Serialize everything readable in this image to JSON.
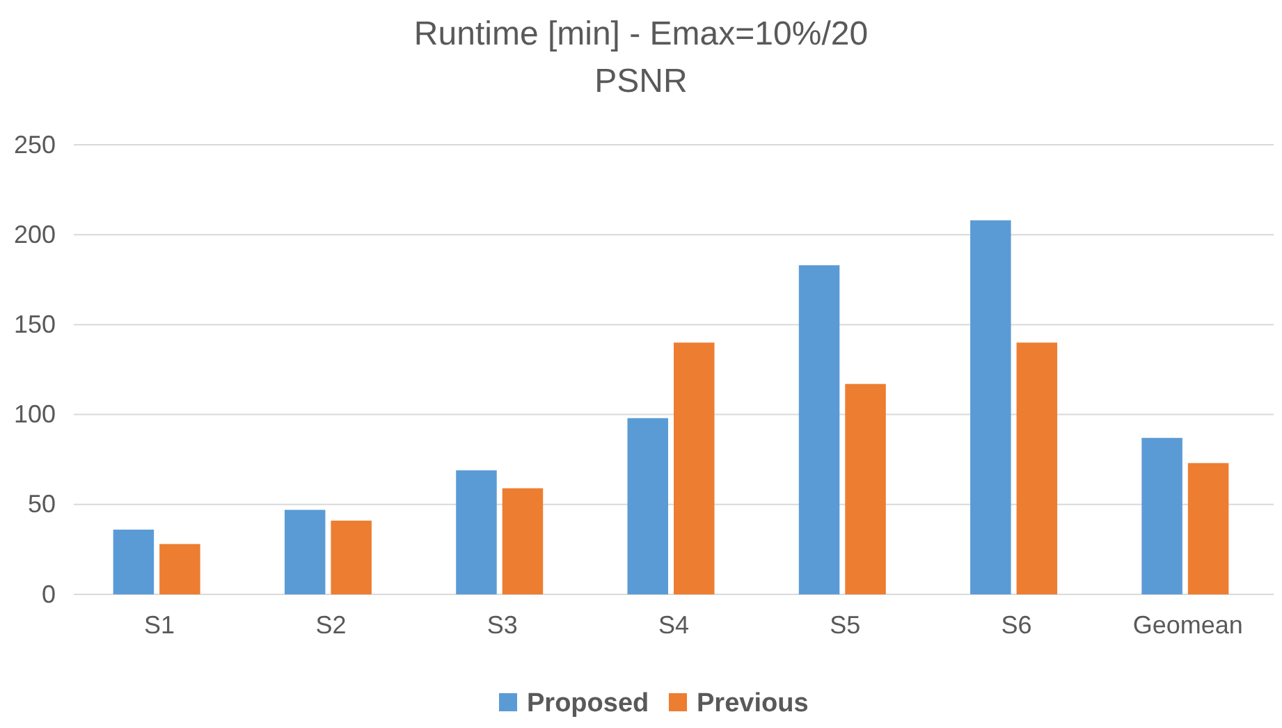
{
  "chart_data": {
    "type": "bar",
    "title": "Runtime [min] - Emax=10%/20",
    "subtitle": "PSNR",
    "categories": [
      "S1",
      "S2",
      "S3",
      "S4",
      "S5",
      "S6",
      "Geomean"
    ],
    "series": [
      {
        "name": "Proposed",
        "color": "#5b9bd5",
        "values": [
          36,
          47,
          69,
          98,
          183,
          208,
          87
        ]
      },
      {
        "name": "Previous",
        "color": "#ed7d31",
        "values": [
          28,
          41,
          59,
          140,
          117,
          140,
          73
        ]
      }
    ],
    "ylim": [
      0,
      250
    ],
    "yticks": [
      0,
      50,
      100,
      150,
      200,
      250
    ],
    "grid": "y",
    "legend": "bottom"
  }
}
